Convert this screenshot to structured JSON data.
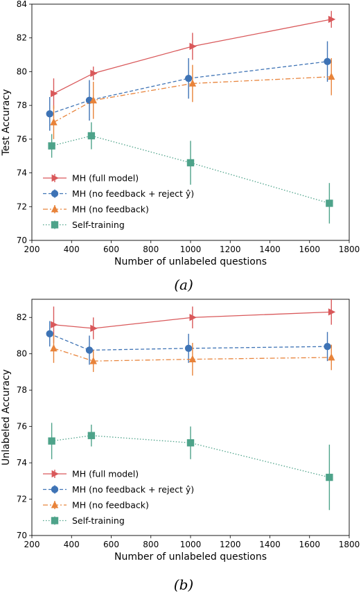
{
  "chart_data": [
    {
      "type": "line",
      "caption": "(a)",
      "xlabel": "Number of unlabeled questions",
      "ylabel": "Test Accuracy",
      "xlim": [
        200,
        1800
      ],
      "ylim": [
        70,
        84
      ],
      "xticks": [
        200,
        400,
        600,
        800,
        1000,
        1200,
        1400,
        1600,
        1800
      ],
      "yticks": [
        70,
        72,
        74,
        76,
        78,
        80,
        82,
        84
      ],
      "legend": "lower-left",
      "series": [
        {
          "name": "MH (full model)",
          "color": "#d9585a",
          "marker": "triangle-right",
          "linestyle": "solid",
          "x": [
            310,
            510,
            1010,
            1710
          ],
          "y": [
            78.7,
            79.9,
            81.5,
            83.1
          ],
          "err": [
            0.9,
            0.4,
            0.8,
            0.5
          ]
        },
        {
          "name": "MH (no feedback + reject ŷ)",
          "color": "#3e73b5",
          "marker": "circle",
          "linestyle": "dashed",
          "x": [
            290,
            490,
            990,
            1690
          ],
          "y": [
            77.5,
            78.3,
            79.6,
            80.6
          ],
          "err": [
            1.0,
            1.2,
            1.2,
            1.2
          ]
        },
        {
          "name": "MH (no feedback)",
          "color": "#e8833a",
          "marker": "triangle-up",
          "linestyle": "dashdot",
          "x": [
            310,
            510,
            1010,
            1710
          ],
          "y": [
            77.0,
            78.3,
            79.3,
            79.7
          ],
          "err": [
            1.0,
            1.1,
            1.1,
            1.1
          ]
        },
        {
          "name": "Self-training",
          "color": "#4ea38a",
          "marker": "square",
          "linestyle": "dotted",
          "x": [
            300,
            500,
            1000,
            1700
          ],
          "y": [
            75.6,
            76.2,
            74.6,
            72.2
          ],
          "err": [
            0.7,
            0.8,
            1.3,
            1.2
          ]
        }
      ]
    },
    {
      "type": "line",
      "caption": "(b)",
      "xlabel": "Number of unlabeled questions",
      "ylabel": "Unlabeled Accuracy",
      "xlim": [
        200,
        1800
      ],
      "ylim": [
        70,
        83
      ],
      "xticks": [
        200,
        400,
        600,
        800,
        1000,
        1200,
        1400,
        1600,
        1800
      ],
      "yticks": [
        70,
        72,
        74,
        76,
        78,
        80,
        82
      ],
      "legend": "lower-left",
      "series": [
        {
          "name": "MH (full model)",
          "color": "#d9585a",
          "marker": "triangle-right",
          "linestyle": "solid",
          "x": [
            310,
            510,
            1010,
            1710
          ],
          "y": [
            81.6,
            81.4,
            82.0,
            82.3
          ],
          "err": [
            1.0,
            0.6,
            0.6,
            0.7
          ]
        },
        {
          "name": "MH (no feedback + reject ŷ)",
          "color": "#3e73b5",
          "marker": "circle",
          "linestyle": "dashed",
          "x": [
            290,
            490,
            990,
            1690
          ],
          "y": [
            81.1,
            80.2,
            80.3,
            80.4
          ],
          "err": [
            0.7,
            0.8,
            0.8,
            0.8
          ]
        },
        {
          "name": "MH (no feedback)",
          "color": "#e8833a",
          "marker": "triangle-up",
          "linestyle": "dashdot",
          "x": [
            310,
            510,
            1010,
            1710
          ],
          "y": [
            80.3,
            79.6,
            79.7,
            79.8
          ],
          "err": [
            0.8,
            0.6,
            0.9,
            0.7
          ]
        },
        {
          "name": "Self-training",
          "color": "#4ea38a",
          "marker": "square",
          "linestyle": "dotted",
          "x": [
            300,
            500,
            1000,
            1700
          ],
          "y": [
            75.2,
            75.5,
            75.1,
            73.2
          ],
          "err": [
            1.0,
            0.6,
            0.9,
            1.8
          ]
        }
      ]
    }
  ]
}
